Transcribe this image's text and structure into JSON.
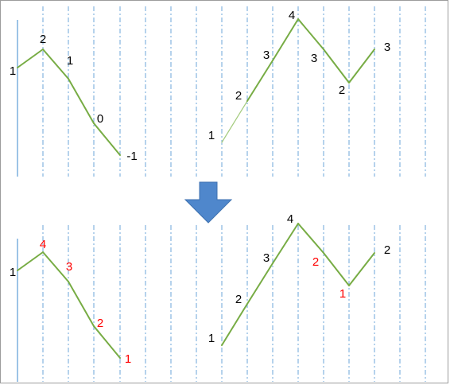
{
  "colors": {
    "line": "#77ac44",
    "line_light": "#a5cc7f",
    "grid": "#5b9bd5",
    "axis": "#5b9bd5",
    "label": "#000000",
    "highlight": "#ff0000",
    "arrow": "#4f87cc"
  },
  "arrow_icon": "down-arrow-icon",
  "panels": [
    {
      "id": "top-left",
      "points": [
        1,
        2,
        1,
        0,
        -1
      ],
      "labels": [
        {
          "text": "1",
          "color": "label"
        },
        {
          "text": "2",
          "color": "label"
        },
        {
          "text": "1",
          "color": "label"
        },
        {
          "text": "0",
          "color": "label"
        },
        {
          "text": "-1",
          "color": "label"
        }
      ]
    },
    {
      "id": "top-right",
      "points": [
        1,
        2,
        3,
        4,
        3,
        2,
        3
      ],
      "labels": [
        {
          "text": "1",
          "color": "label"
        },
        {
          "text": "2",
          "color": "label"
        },
        {
          "text": "3",
          "color": "label"
        },
        {
          "text": "4",
          "color": "label"
        },
        {
          "text": "3",
          "color": "label"
        },
        {
          "text": "2",
          "color": "label"
        },
        {
          "text": "3",
          "color": "label"
        }
      ]
    },
    {
      "id": "bottom-left",
      "points": [
        1,
        2,
        1,
        0,
        -1
      ],
      "labels": [
        {
          "text": "1",
          "color": "label"
        },
        {
          "text": "4",
          "color": "highlight"
        },
        {
          "text": "3",
          "color": "highlight"
        },
        {
          "text": "2",
          "color": "highlight"
        },
        {
          "text": "1",
          "color": "highlight"
        }
      ]
    },
    {
      "id": "bottom-right",
      "points": [
        1,
        2,
        3,
        4,
        3,
        2,
        3
      ],
      "labels": [
        {
          "text": "1",
          "color": "label"
        },
        {
          "text": "2",
          "color": "label"
        },
        {
          "text": "3",
          "color": "label"
        },
        {
          "text": "4",
          "color": "label"
        },
        {
          "text": "2",
          "color": "highlight"
        },
        {
          "text": "1",
          "color": "highlight"
        },
        {
          "text": "2",
          "color": "label"
        }
      ]
    }
  ]
}
